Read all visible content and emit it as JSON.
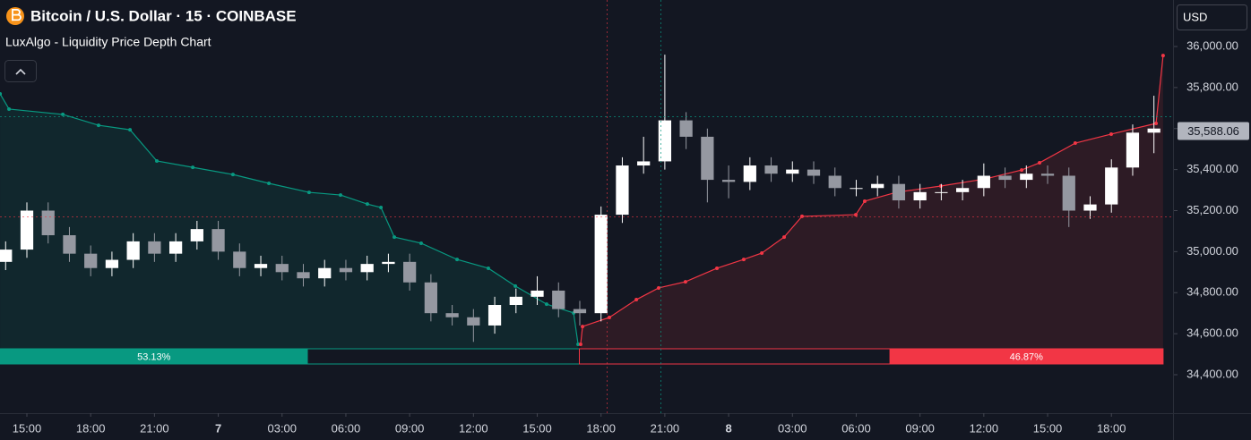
{
  "chart_data": {
    "type": "candlestick",
    "title": "Bitcoin / U.S. Dollar · 15 · COINBASE",
    "subtitle": "LuxAlgo - Liquidity Price Depth Chart",
    "currency": "USD",
    "up_color": "#ffffff",
    "down_color": "#9598a1",
    "xlim": [
      13.7357,
      68.856
    ],
    "xticks": [
      {
        "value": 15,
        "label": "15:00"
      },
      {
        "value": 18,
        "label": "18:00"
      },
      {
        "value": 21,
        "label": "21:00"
      },
      {
        "value": 24,
        "label": "7"
      },
      {
        "value": 27,
        "label": "03:00"
      },
      {
        "value": 30,
        "label": "06:00"
      },
      {
        "value": 33,
        "label": "09:00"
      },
      {
        "value": 36,
        "label": "12:00"
      },
      {
        "value": 39,
        "label": "15:00"
      },
      {
        "value": 42,
        "label": "18:00"
      },
      {
        "value": 45,
        "label": "21:00"
      },
      {
        "value": 48,
        "label": "8"
      },
      {
        "value": 51,
        "label": "03:00"
      },
      {
        "value": 54,
        "label": "06:00"
      },
      {
        "value": 57,
        "label": "09:00"
      },
      {
        "value": 60,
        "label": "12:00"
      },
      {
        "value": 63,
        "label": "15:00"
      },
      {
        "value": 66,
        "label": "18:00"
      }
    ],
    "ylim": [
      34212.5,
      36226.7
    ],
    "yticks": [
      {
        "value": 34400,
        "label": "34,400.00"
      },
      {
        "value": 34600,
        "label": "34,600.00"
      },
      {
        "value": 34800,
        "label": "34,800.00"
      },
      {
        "value": 35000,
        "label": "35,000.00"
      },
      {
        "value": 35200,
        "label": "35,200.00"
      },
      {
        "value": 35400,
        "label": "35,400.00"
      },
      {
        "value": 35600,
        "label": "35,600.00"
      },
      {
        "value": 35800,
        "label": "35,800.00"
      },
      {
        "value": 36000,
        "label": "36,000.00"
      }
    ],
    "last_price": {
      "value": 35588.06,
      "label": "35,588.06"
    },
    "x": [
      14,
      15,
      16,
      17,
      18,
      19,
      20,
      21,
      22,
      23,
      24,
      25,
      26,
      27,
      28,
      29,
      30,
      31,
      32,
      33,
      34,
      35,
      36,
      37,
      38,
      39,
      40,
      41,
      42,
      43,
      44,
      45,
      46,
      47,
      48,
      49,
      50,
      51,
      52,
      53,
      54,
      55,
      56,
      57,
      58,
      59,
      60,
      61,
      62,
      63,
      64,
      65,
      66,
      67,
      68
    ],
    "open": [
      34950,
      35010,
      35200,
      35080,
      34990,
      34920,
      34960,
      35050,
      34990,
      35050,
      35110,
      35000,
      34920,
      34940,
      34900,
      34870,
      34920,
      34900,
      34940,
      34950,
      34850,
      34700,
      34680,
      34640,
      34740,
      34780,
      34810,
      34720,
      34700,
      35180,
      35420,
      35440,
      35640,
      35560,
      35350,
      35340,
      35420,
      35380,
      35400,
      35370,
      35310,
      35310,
      35330,
      35250,
      35290,
      35290,
      35310,
      35370,
      35350,
      35380,
      35370,
      35200,
      35230,
      35410,
      35580
    ],
    "high": [
      35050,
      35240,
      35240,
      35120,
      35030,
      35000,
      35090,
      35090,
      35090,
      35150,
      35150,
      35040,
      34980,
      34980,
      34940,
      34960,
      34960,
      34980,
      34990,
      34990,
      34890,
      34740,
      34720,
      34780,
      34820,
      34880,
      34850,
      34760,
      35220,
      35460,
      35560,
      35960,
      35680,
      35600,
      35420,
      35460,
      35460,
      35440,
      35440,
      35410,
      35350,
      35370,
      35370,
      35330,
      35330,
      35350,
      35430,
      35410,
      35420,
      35420,
      35410,
      35270,
      35450,
      35620,
      35760
    ],
    "low": [
      34910,
      34970,
      35040,
      34950,
      34880,
      34880,
      34920,
      34950,
      34950,
      35010,
      34960,
      34880,
      34880,
      34860,
      34830,
      34830,
      34860,
      34860,
      34900,
      34810,
      34660,
      34640,
      34560,
      34600,
      34700,
      34740,
      34680,
      34640,
      34660,
      35140,
      35380,
      35400,
      35500,
      35240,
      35260,
      35300,
      35340,
      35340,
      35330,
      35270,
      35270,
      35270,
      35210,
      35210,
      35250,
      35250,
      35270,
      35310,
      35310,
      35330,
      35120,
      35160,
      35190,
      35370,
      35480
    ],
    "close": [
      35010,
      35200,
      35080,
      34990,
      34920,
      34960,
      35050,
      34990,
      35050,
      35110,
      35000,
      34920,
      34940,
      34900,
      34870,
      34920,
      34900,
      34940,
      34950,
      34850,
      34700,
      34680,
      34640,
      34740,
      34780,
      34810,
      34720,
      34700,
      35180,
      35420,
      35440,
      35640,
      35560,
      35350,
      35340,
      35420,
      35380,
      35400,
      35370,
      35310,
      35310,
      35330,
      35250,
      35290,
      35290,
      35310,
      35370,
      35350,
      35380,
      35370,
      35200,
      35230,
      35410,
      35580,
      35600
    ],
    "bid_line": {
      "color": "#089981",
      "x": [
        13.74,
        14.16,
        16.69,
        18.37,
        19.85,
        21.11,
        22.8,
        24.69,
        26.38,
        28.27,
        29.75,
        31.01,
        31.65,
        32.28,
        33.54,
        35.23,
        36.7,
        37.97,
        39.44,
        40.71,
        40.92
      ],
      "values": [
        35769,
        35695,
        35669,
        35616,
        35594,
        35442,
        35411,
        35376,
        35333,
        35289,
        35276,
        35232,
        35215,
        35071,
        35041,
        34962,
        34919,
        34832,
        34744,
        34701,
        34548
      ]
    },
    "ask_line": {
      "color": "#f23645",
      "x": [
        41.04,
        41.13,
        42.39,
        43.66,
        44.71,
        45.97,
        47.45,
        48.71,
        49.56,
        50.61,
        51.45,
        53.98,
        54.4,
        55.88,
        57.98,
        60.09,
        61.78,
        62.62,
        64.3,
        65.99,
        68.1,
        68.43
      ],
      "values": [
        34548,
        34635,
        34679,
        34766,
        34823,
        34853,
        34919,
        34962,
        34993,
        35071,
        35172,
        35180,
        35246,
        35289,
        35320,
        35355,
        35398,
        35433,
        35529,
        35573,
        35625,
        35956
      ]
    },
    "bid_share": 53.13,
    "bid_share_label": "53.13%",
    "ask_share": 46.87,
    "ask_share_label": "46.87%"
  }
}
